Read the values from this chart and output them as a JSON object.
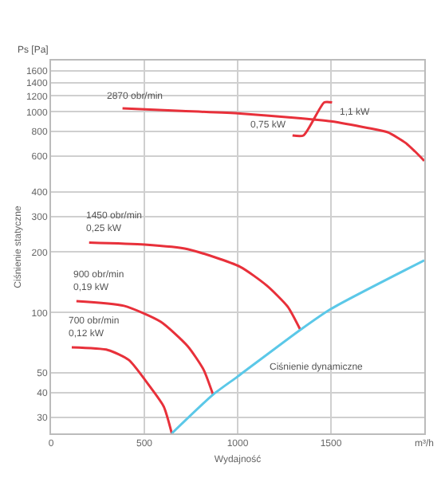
{
  "chart_data": {
    "type": "line",
    "xlabel": "Wydajność",
    "ylabel": "Ciśnienie statyczne",
    "log": "y",
    "grid": true,
    "marker": "none",
    "line_style": "solid",
    "xlim": [
      0,
      2000
    ],
    "xticks": [
      0,
      500,
      1000,
      1500,
      {
        "value": 2000,
        "label": "m³/h"
      }
    ],
    "ylim": [
      25,
      1800
    ],
    "yticks": [
      30,
      40,
      50,
      100,
      200,
      300,
      400,
      600,
      800,
      1000,
      1200,
      1400,
      1600
    ],
    "series": [
      {
        "color": "#e8303a",
        "x": [
          383,
          700,
          1013,
          1300,
          1500,
          1700,
          1805,
          1900,
          1950,
          2000
        ],
        "values": [
          1040,
          1010,
          980,
          935,
          897,
          830,
          790,
          700,
          635,
          570
        ]
      },
      {
        "color": "#e8303a",
        "x": [
          1294,
          1353,
          1464,
          1506
        ],
        "values": [
          762,
          762,
          1114,
          1114
        ]
      },
      {
        "color": "#e8303a",
        "x": [
          204,
          502,
          732,
          1013,
          1157,
          1268,
          1336
        ],
        "values": [
          223,
          218,
          207,
          169,
          136,
          107,
          82
        ]
      },
      {
        "color": "#e8303a",
        "x": [
          136,
          391,
          587,
          732,
          817,
          868
        ],
        "values": [
          114,
          108,
          90,
          68,
          52,
          39
        ]
      },
      {
        "color": "#e8303a",
        "x": [
          111,
          306,
          417,
          528,
          604,
          647
        ],
        "values": [
          67,
          65,
          58,
          43,
          34,
          25
        ]
      },
      {
        "color": "#5bc8e8",
        "x": [
          647,
          868,
          1000,
          1336,
          1498,
          2000
        ],
        "values": [
          25,
          39,
          48,
          82,
          104,
          182
        ]
      }
    ],
    "annotations": [
      "Ps [Pa]",
      {
        "text": "2870 obr/min",
        "x": 383,
        "y": 1040
      },
      {
        "text": "0,75 kW",
        "x": 1294,
        "y": 762
      },
      {
        "text": "1,1 kW",
        "x": 1506,
        "y": 1114
      },
      {
        "text": "1450 obr/min",
        "x": 204,
        "y": 223
      },
      {
        "text": "0,25 kW",
        "x": 204,
        "y": 223
      },
      {
        "text": "900 obr/min",
        "x": 136,
        "y": 114
      },
      {
        "text": "0,19 kW",
        "x": 136,
        "y": 114
      },
      {
        "text": "700 obr/min",
        "x": 111,
        "y": 67
      },
      {
        "text": "0,12 kW",
        "x": 111,
        "y": 67
      },
      "Ciśnienie dynamiczne"
    ]
  }
}
